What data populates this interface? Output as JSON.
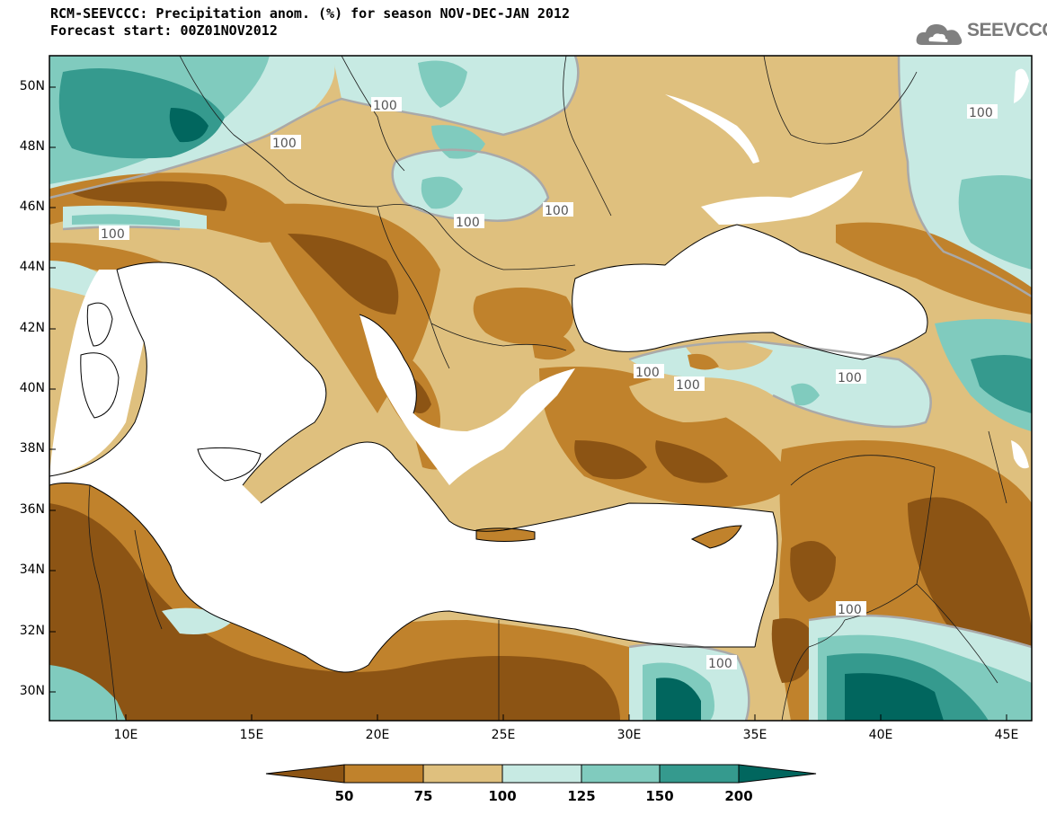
{
  "title": "RCM-SEEVCCC: Precipitation anom. (%) for season NOV-DEC-JAN 2012",
  "subtitle": "Forecast start: 00Z01NOV2012",
  "logo": {
    "text": "SEEVCCC",
    "icon": "cloud-icon"
  },
  "lat_labels": [
    "50N",
    "48N",
    "46N",
    "44N",
    "42N",
    "40N",
    "38N",
    "36N",
    "34N",
    "32N",
    "30N"
  ],
  "lon_labels": [
    "10E",
    "15E",
    "20E",
    "25E",
    "30E",
    "35E",
    "40E",
    "45E"
  ],
  "contour_labels": [
    "100",
    "100",
    "100",
    "100",
    "100",
    "100",
    "100",
    "100",
    "100",
    "100",
    "100"
  ],
  "colorbar": {
    "labels": [
      "50",
      "75",
      "100",
      "125",
      "150",
      "200"
    ],
    "colors": [
      "#8c5414",
      "#c0822c",
      "#dfc07e",
      "#c7eae3",
      "#80cbbe",
      "#359a8e",
      "#01665e"
    ]
  }
}
